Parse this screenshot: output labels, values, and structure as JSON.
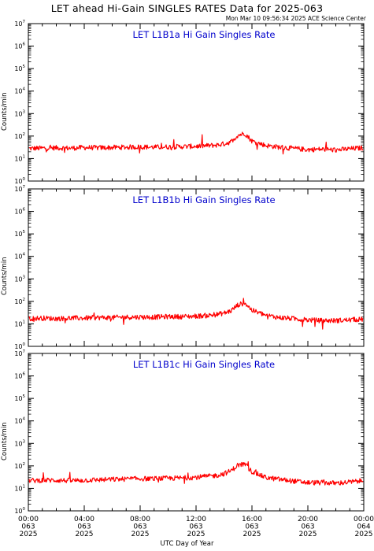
{
  "title": "LET ahead Hi-Gain SINGLES RATES Data for 2025-063",
  "timestamp": "Mon Mar 10 09:56:34 2025 ACE Science Center",
  "xlabel": "UTC Day of Year",
  "colors": {
    "trace": "#ff0000",
    "panel_title": "#0000cc",
    "axes": "#000000"
  },
  "chart_data": [
    {
      "type": "line",
      "title": "LET L1B1a Hi Gain Singles Rate",
      "ylabel": "Counts/min",
      "yscale": "log",
      "ylim": [
        1,
        10000000
      ],
      "xlim": [
        0,
        24
      ],
      "yticks": [
        "10^0",
        "10^1",
        "10^2",
        "10^3",
        "10^4",
        "10^5",
        "10^6",
        "10^7"
      ],
      "series": [
        {
          "x": [
            0,
            1,
            2,
            3,
            4,
            5,
            6,
            7,
            8,
            9,
            10,
            11,
            12,
            13,
            13.5,
            14,
            14.5,
            15,
            15.5,
            16,
            17,
            18,
            19,
            20,
            21,
            22,
            23,
            24
          ],
          "y": [
            28,
            29,
            30,
            29,
            31,
            30,
            31,
            32,
            33,
            32,
            33,
            34,
            35,
            38,
            40,
            45,
            55,
            110,
            130,
            60,
            38,
            32,
            28,
            25,
            26,
            24,
            27,
            30
          ]
        }
      ]
    },
    {
      "type": "line",
      "title": "LET L1B1b Hi Gain Singles Rate",
      "ylabel": "Counts/min",
      "yscale": "log",
      "ylim": [
        1,
        10000000
      ],
      "xlim": [
        0,
        24
      ],
      "yticks": [
        "10^0",
        "10^1",
        "10^2",
        "10^3",
        "10^4",
        "10^5",
        "10^6",
        "10^7"
      ],
      "series": [
        {
          "x": [
            0,
            1,
            2,
            3,
            4,
            5,
            6,
            7,
            8,
            9,
            10,
            11,
            12,
            13,
            13.5,
            14,
            14.5,
            15,
            15.5,
            16,
            17,
            18,
            19,
            20,
            21,
            22,
            23,
            24
          ],
          "y": [
            17,
            18,
            17,
            18,
            18,
            19,
            19,
            20,
            20,
            20,
            21,
            21,
            22,
            24,
            26,
            30,
            38,
            70,
            85,
            40,
            24,
            19,
            17,
            15,
            14,
            14,
            15,
            16
          ]
        }
      ]
    },
    {
      "type": "line",
      "title": "LET L1B1c Hi Gain Singles Rate",
      "ylabel": "Counts/min",
      "yscale": "log",
      "ylim": [
        1,
        10000000
      ],
      "xlim": [
        0,
        24
      ],
      "yticks": [
        "10^0",
        "10^1",
        "10^2",
        "10^3",
        "10^4",
        "10^5",
        "10^6",
        "10^7"
      ],
      "series": [
        {
          "x": [
            0,
            1,
            2,
            3,
            4,
            5,
            6,
            7,
            8,
            9,
            10,
            11,
            12,
            13,
            13.5,
            14,
            14.5,
            15,
            15.5,
            16,
            17,
            18,
            19,
            20,
            21,
            22,
            23,
            24
          ],
          "y": [
            22,
            23,
            23,
            22,
            23,
            24,
            25,
            26,
            27,
            27,
            28,
            29,
            31,
            35,
            38,
            45,
            60,
            110,
            120,
            55,
            30,
            25,
            21,
            18,
            18,
            17,
            19,
            22
          ]
        }
      ]
    }
  ],
  "xticks": [
    {
      "time": "00:00",
      "doy": "063",
      "year": "2025"
    },
    {
      "time": "04:00",
      "doy": "063",
      "year": "2025"
    },
    {
      "time": "08:00",
      "doy": "063",
      "year": "2025"
    },
    {
      "time": "12:00",
      "doy": "063",
      "year": "2025"
    },
    {
      "time": "16:00",
      "doy": "063",
      "year": "2025"
    },
    {
      "time": "20:00",
      "doy": "063",
      "year": "2025"
    },
    {
      "time": "00:00",
      "doy": "064",
      "year": "2025"
    }
  ]
}
